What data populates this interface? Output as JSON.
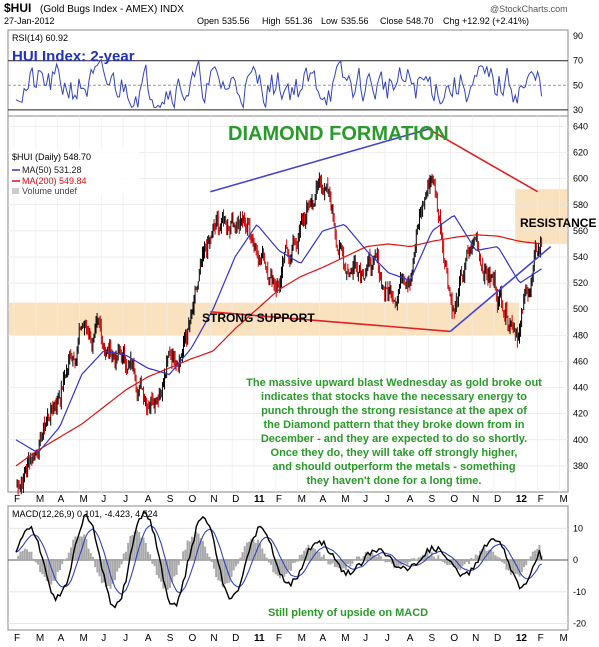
{
  "header": {
    "symbol": "$HUI",
    "name": "(Gold Bugs Index - AMEX) INDX",
    "date": "27-Jan-2012",
    "watermark": "@StockCharts.com",
    "open_label": "Open",
    "open": "535.56",
    "high_label": "High",
    "high": "551.36",
    "low_label": "Low",
    "low": "535.56",
    "close_label": "Close",
    "close": "548.70",
    "chg_label": "Chg",
    "chg": "+12.92 (+2.41%)"
  },
  "rsi_panel": {
    "legend": "RSI(14) 60.92",
    "title": "HUI Index: 2-year",
    "ticks": [
      90,
      70,
      50,
      30
    ],
    "ylim": [
      25,
      95
    ]
  },
  "price_panel": {
    "legend_main": "$HUI (Daily) 548.70",
    "legend_ma50": "MA(50) 531.28",
    "legend_ma200": "MA(200) 549.84",
    "legend_volume": "Volume undef",
    "ticks": [
      640,
      620,
      600,
      580,
      560,
      540,
      520,
      500,
      480,
      460,
      440,
      420,
      400,
      380
    ],
    "ylim": [
      360,
      648
    ],
    "title_annotation": "DIAMOND FORMATION",
    "support_label": "STRONG SUPPORT",
    "resistance_label": "RESISTANCE",
    "support_band": [
      480,
      505
    ],
    "resistance_band": [
      550,
      592
    ],
    "commentary": [
      "The massive upward blast Wednesday as gold broke out",
      "indicates that stocks have the necessary energy to",
      "punch through the strong resistance at the apex of",
      "the Diamond pattern that they broke down from in",
      "December - and they are expected to do so shortly.",
      "Once they do, they will take off strongly higher,",
      "and should outperform the metals - something",
      "they haven't done for a long time."
    ]
  },
  "months": [
    "F",
    "M",
    "A",
    "M",
    "J",
    "J",
    "A",
    "S",
    "O",
    "N",
    "D",
    "11",
    "F",
    "M",
    "A",
    "M",
    "J",
    "J",
    "A",
    "S",
    "O",
    "N",
    "D",
    "12",
    "F",
    "M"
  ],
  "macd_panel": {
    "legend": "MACD(12,26,9) 0.101, -4.423, 4.524",
    "ticks": [
      10,
      0,
      -10,
      -20
    ],
    "ylim": [
      -22,
      17
    ],
    "annotation": "Still plenty of upside on MACD"
  },
  "colors": {
    "price": "#000000",
    "up_bar": "#000000",
    "down_bar": "#cc0000",
    "ma50": "#3333cc",
    "ma200": "#dd1111",
    "rsi": "#3344bb",
    "macd": "#000000",
    "signal": "#3344bb",
    "histogram": "#a8a8a8",
    "band": "#fbe2bf",
    "annotation": "#2a9a2a",
    "upper_line": "#4444cc",
    "lower_line": "#dd2222"
  },
  "chart_data": {
    "type": "line",
    "title": "$HUI (Gold Bugs Index - AMEX) INDX",
    "xlabel": "",
    "ylabel": "",
    "x": [
      "F",
      "M",
      "A",
      "M",
      "J",
      "J",
      "A",
      "S",
      "O",
      "N",
      "D",
      "11",
      "F",
      "M",
      "A",
      "M",
      "J",
      "J",
      "A",
      "S",
      "O",
      "N",
      "D",
      "12",
      "F"
    ],
    "series": [
      {
        "name": "$HUI (Daily)",
        "values": [
          365,
          400,
          440,
          490,
          470,
          460,
          440,
          465,
          490,
          550,
          575,
          555,
          525,
          560,
          600,
          535,
          545,
          510,
          545,
          605,
          505,
          550,
          515,
          495,
          549
        ]
      },
      {
        "name": "MA(50)",
        "values": [
          400,
          390,
          410,
          450,
          468,
          465,
          455,
          450,
          470,
          500,
          540,
          565,
          545,
          535,
          560,
          565,
          545,
          528,
          522,
          560,
          572,
          545,
          548,
          520,
          531
        ]
      },
      {
        "name": "MA(200)",
        "values": [
          380,
          392,
          402,
          412,
          425,
          438,
          448,
          455,
          462,
          468,
          485,
          500,
          515,
          525,
          532,
          540,
          548,
          550,
          548,
          552,
          555,
          557,
          556,
          552,
          550
        ]
      }
    ],
    "ylim": [
      360,
      648
    ],
    "trendlines": [
      {
        "name": "diamond-upper-left",
        "x": [
          "N",
          "S"
        ],
        "y": [
          590,
          638
        ]
      },
      {
        "name": "diamond-upper-right",
        "x": [
          "S",
          "F"
        ],
        "y": [
          638,
          590
        ]
      },
      {
        "name": "diamond-lower-left",
        "x": [
          "N",
          "O"
        ],
        "y": [
          498,
          483
        ]
      },
      {
        "name": "diamond-lower-right",
        "x": [
          "O",
          "J"
        ],
        "y": [
          483,
          548
        ]
      }
    ],
    "grid": true
  }
}
